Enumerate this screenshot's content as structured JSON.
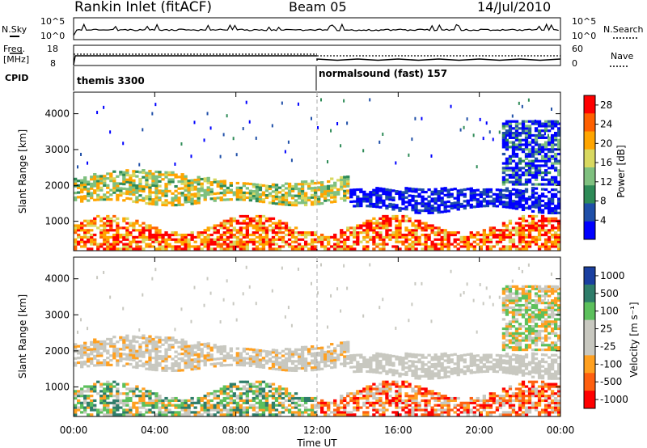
{
  "header": {
    "title": "Rankin Inlet (fitACF)",
    "beam": "Beam 05",
    "date": "14/Jul/2010"
  },
  "top_panels": {
    "nsky_label": "N.Sky",
    "nsearch_label": "N.Search",
    "freq_label": "Freq.",
    "freq_unit": "[MHz]",
    "nave_label": "Nave",
    "cpid_label": "CPID",
    "log_ticks": [
      "10^5",
      "10^0"
    ],
    "freq_ticks": [
      "18",
      "8"
    ],
    "nave_ticks": [
      "60",
      "0"
    ]
  },
  "cpid": [
    {
      "name": "themis 3300",
      "start_hour": 0
    },
    {
      "name": "normalsound (fast) 157",
      "start_hour": 12
    }
  ],
  "colors": {
    "power_scale": [
      "#0000ff",
      "#1f4fa8",
      "#2e8b57",
      "#7fc07f",
      "#d8d860",
      "#ffa500",
      "#ff6000",
      "#ff0000"
    ],
    "velocity_scale": [
      "#1a3fa0",
      "#2e7d6a",
      "#5cc05c",
      "#c8c8c0",
      "#c8c8c0",
      "#ffa020",
      "#ff6010",
      "#ff0000"
    ]
  },
  "chart_data": [
    {
      "type": "heatmap",
      "title": "",
      "xlabel": "",
      "ylabel": "Slant Range [km]",
      "xlim": [
        0,
        24
      ],
      "ylim": [
        180,
        4600
      ],
      "y_ticks": [
        "1000",
        "2000",
        "3000",
        "4000"
      ],
      "colorbar": {
        "label": "Power [dB]",
        "ticks": [
          "4",
          "8",
          "12",
          "16",
          "20",
          "24",
          "28"
        ],
        "range": [
          0,
          30
        ]
      }
    },
    {
      "type": "heatmap",
      "title": "",
      "xlabel": "Time UT",
      "ylabel": "Slant Range [km]",
      "xlim": [
        0,
        24
      ],
      "ylim": [
        180,
        4600
      ],
      "x_ticks": [
        "00:00",
        "04:00",
        "08:00",
        "12:00",
        "16:00",
        "20:00",
        "00:00"
      ],
      "y_ticks": [
        "1000",
        "2000",
        "3000",
        "4000"
      ],
      "colorbar": {
        "label": "Velocity [m s⁻¹]",
        "ticks": [
          "1000",
          "500",
          "100",
          "25",
          "-25",
          "-100",
          "-500",
          "-1000"
        ]
      }
    }
  ]
}
